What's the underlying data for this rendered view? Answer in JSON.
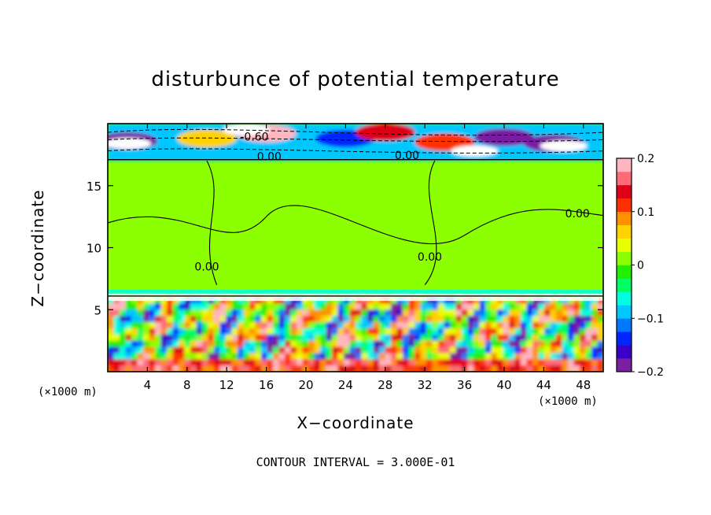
{
  "chart_data": {
    "type": "heatmap",
    "title": "disturbunce of potential temperature",
    "xlabel": "X−coordinate",
    "ylabel": "Z−coordinate",
    "x_unit_label": "(×1000 m)",
    "xlim": [
      0,
      50
    ],
    "ylim": [
      0,
      20
    ],
    "x_ticks": [
      4,
      8,
      12,
      16,
      20,
      24,
      28,
      32,
      36,
      40,
      44,
      48
    ],
    "y_ticks": [
      5,
      10,
      15
    ],
    "colorbar": {
      "range": [
        -0.2,
        0.2
      ],
      "tick_values": [
        0.2,
        0.1,
        0,
        -0.1,
        -0.2
      ],
      "tick_labels": [
        "0.2",
        "0.1",
        "0",
        "−0.1",
        "−0.2"
      ],
      "colors": [
        "#7a1fa2",
        "#3a00c8",
        "#0026ff",
        "#0077ff",
        "#00c8ff",
        "#00ffe0",
        "#00ff60",
        "#22ee00",
        "#8cff00",
        "#e8ff00",
        "#ffd200",
        "#ff9000",
        "#ff3000",
        "#e00018",
        "#ff6a78",
        "#ffb6c0"
      ]
    },
    "contour_labels": [
      {
        "text": "-0.60",
        "x": 14.8,
        "y": 18.9
      },
      {
        "text": "0.00",
        "x": 16.3,
        "y": 17.3
      },
      {
        "text": "0.00",
        "x": 30.2,
        "y": 17.4
      },
      {
        "text": "0.00",
        "x": 47.4,
        "y": 12.7
      },
      {
        "text": "0.00",
        "x": 10.0,
        "y": 8.4
      },
      {
        "text": "0.00",
        "x": 32.5,
        "y": 9.2
      }
    ],
    "contour_interval_text": "CONTOUR INTERVAL = 3.000E-01",
    "regions": {
      "upper_layer_z": [
        17,
        20
      ],
      "upper_anomaly": -0.6,
      "middle_layer_z": [
        6,
        17
      ],
      "middle_anomaly": 0.0,
      "lower_layer_z": [
        0,
        6
      ],
      "lower_anomaly_range": [
        -0.2,
        0.2
      ]
    }
  }
}
